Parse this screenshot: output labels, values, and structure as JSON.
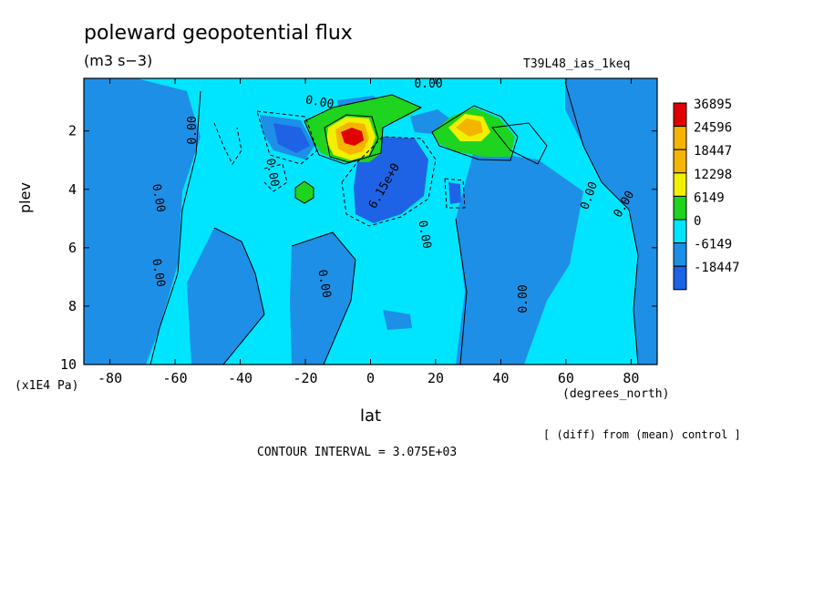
{
  "title": "poleward geopotential flux",
  "units": "(m3 s−3)",
  "run_name": "T39L48_ias_1keq",
  "y_units": "(x1E4 Pa)",
  "x_units": "(degrees_north)",
  "note": "[ (diff) from (mean) control ]",
  "contour_interval": "CONTOUR INTERVAL = 3.075E+03",
  "contour_labels": [
    "0.00",
    "0.00",
    "0.00",
    "0.00",
    "0.00",
    "0.00",
    "0.00",
    "0.00",
    "0.00",
    "0.00",
    "6.15e+0",
    "0.00"
  ],
  "colors": {
    "neg_large": "#1e63e6",
    "neg": "#1e8fe6",
    "zero": "#00e5ff",
    "pos1": "#1ed41e",
    "pos2": "#f0f000",
    "pos3": "#f5b400",
    "pos4": "#e00000"
  },
  "chart_data": {
    "type": "heatmap",
    "title": "poleward geopotential flux",
    "subtitle": "(m3 s−3)",
    "xlabel": "lat",
    "ylabel": "plev",
    "x_ticks": [
      -80,
      -60,
      -40,
      -20,
      0,
      20,
      40,
      60,
      80
    ],
    "y_ticks": [
      2,
      4,
      6,
      8,
      10
    ],
    "xlim": [
      -88,
      88
    ],
    "ylim": [
      10,
      0.2
    ],
    "contour_interval": 3075,
    "colorbar": {
      "levels": [
        36895,
        24596,
        18447,
        12298,
        6149,
        0,
        -6149,
        -18447
      ],
      "colors": [
        "#e00000",
        "#f5b400",
        "#f5b400",
        "#f0f000",
        "#1ed41e",
        "#00e5ff",
        "#1e8fe6",
        "#1e63e6"
      ]
    },
    "features": [
      {
        "lat": -6,
        "plev": 2.0,
        "value": 36895
      },
      {
        "lat": 30,
        "plev": 1.8,
        "value": 18447
      },
      {
        "lat": -21,
        "plev": 4.0,
        "value": 6149
      },
      {
        "lat": 8,
        "plev": 3.5,
        "value": -6149
      },
      {
        "lat": -26,
        "plev": 2.0,
        "value": -6149
      }
    ]
  }
}
